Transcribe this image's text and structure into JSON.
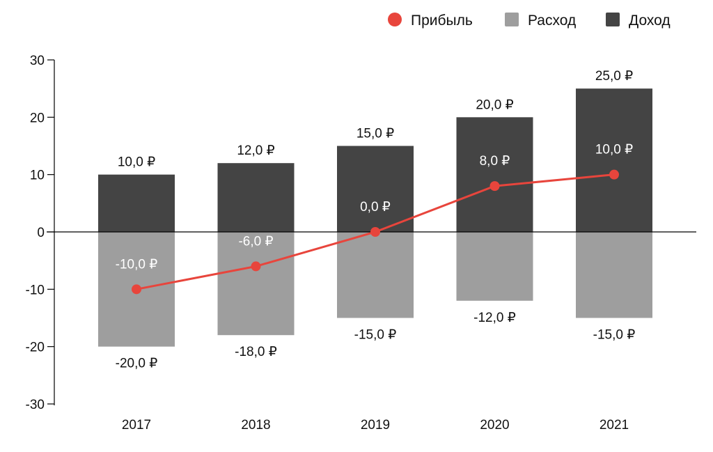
{
  "chart_data": {
    "type": "bar",
    "categories": [
      "2017",
      "2018",
      "2019",
      "2020",
      "2021"
    ],
    "series": [
      {
        "name": "Доход",
        "kind": "bar",
        "color": "#444444",
        "values": [
          10,
          12,
          15,
          20,
          25
        ],
        "labels": [
          "10,0 ₽",
          "12,0 ₽",
          "15,0 ₽",
          "20,0 ₽",
          "25,0 ₽"
        ]
      },
      {
        "name": "Расход",
        "kind": "bar",
        "color": "#9e9e9e",
        "values": [
          -20,
          -18,
          -15,
          -12,
          -15
        ],
        "labels": [
          "-20,0 ₽",
          "-18,0 ₽",
          "-15,0 ₽",
          "-12,0 ₽",
          "-15,0 ₽"
        ]
      },
      {
        "name": "Прибыль",
        "kind": "line",
        "color": "#e8453c",
        "values": [
          -10,
          -6,
          0,
          8,
          10
        ],
        "labels": [
          "-10,0 ₽",
          "-6,0 ₽",
          "0,0 ₽",
          "8,0 ₽",
          "10,0 ₽"
        ]
      }
    ],
    "ylim": [
      -30,
      30
    ],
    "yticks": [
      "30",
      "20",
      "10",
      "0",
      "-10",
      "-20",
      "-30"
    ],
    "ytick_values": [
      30,
      20,
      10,
      0,
      -10,
      -20,
      -30
    ],
    "legend": {
      "placement": "top-right",
      "order": [
        "Прибыль",
        "Расход",
        "Доход"
      ]
    },
    "grid": false,
    "title": "",
    "xlabel": "",
    "ylabel": ""
  }
}
